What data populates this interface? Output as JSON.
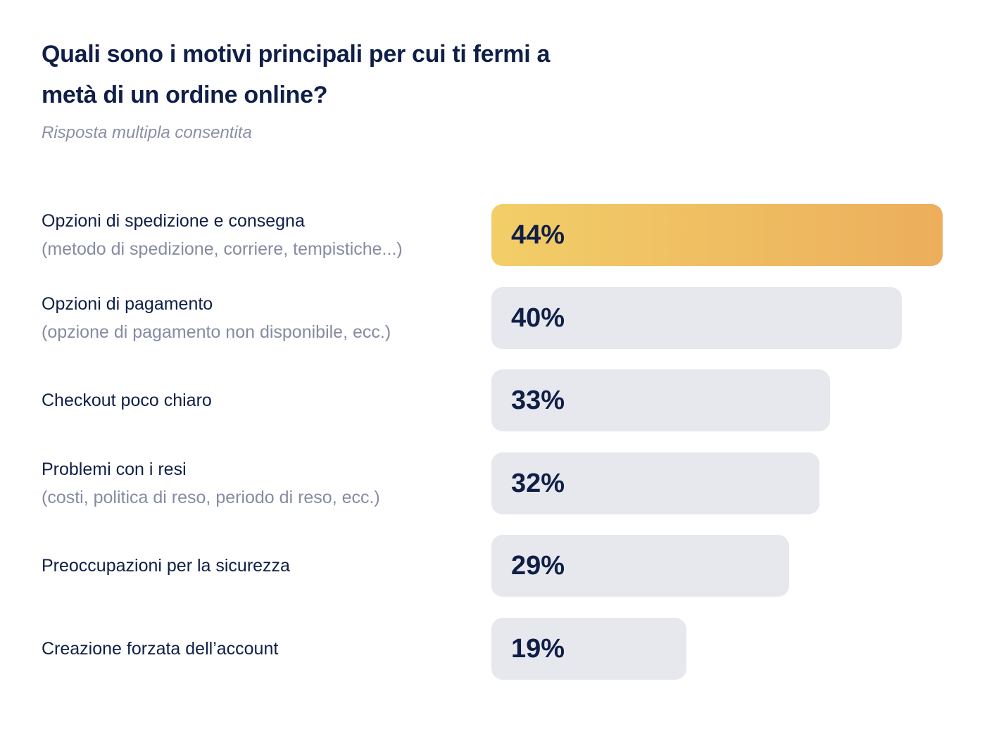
{
  "chart_data": {
    "type": "bar",
    "orientation": "horizontal",
    "title": "Quali sono i motivi principali per cui ti fermi a metà di un ordine online?",
    "subtitle": "Risposta multipla consentita",
    "value_suffix": "%",
    "highlight_color": "#ecae5c",
    "bar_color": "#e7e8ee",
    "text_color": "#0f1f47",
    "categories": [
      {
        "label": "Opzioni di spedizione e consegna",
        "sublabel": "(metodo di spedizione, corriere, tempistiche...)",
        "value": 44,
        "display": "44%",
        "highlight": true
      },
      {
        "label": "Opzioni di pagamento",
        "sublabel": "(opzione di pagamento non disponibile, ecc.)",
        "value": 40,
        "display": "40%",
        "highlight": false
      },
      {
        "label": "Checkout poco chiaro",
        "sublabel": "",
        "value": 33,
        "display": "33%",
        "highlight": false
      },
      {
        "label": "Problemi con i resi",
        "sublabel": "(costi, politica di reso, periodo di reso, ecc.)",
        "value": 32,
        "display": "32%",
        "highlight": false
      },
      {
        "label": "Preoccupazioni per la sicurezza",
        "sublabel": "",
        "value": 29,
        "display": "29%",
        "highlight": false
      },
      {
        "label": "Creazione forzata dell’account",
        "sublabel": "",
        "value": 19,
        "display": "19%",
        "highlight": false
      }
    ]
  }
}
